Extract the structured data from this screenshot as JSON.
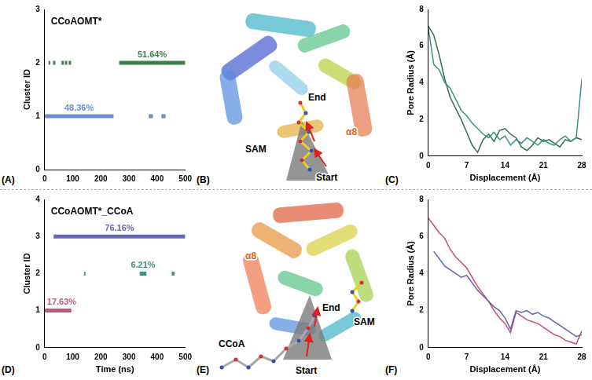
{
  "chart_data": [
    {
      "panel": "(A)",
      "type": "timeline",
      "annotation": "CCoAOMT*",
      "xlim": [
        0,
        500
      ],
      "xticks": [
        0,
        100,
        200,
        300,
        400,
        500
      ],
      "ylim": [
        0,
        3
      ],
      "yticks": [
        0,
        1,
        2,
        3
      ],
      "ylabel": "Cluster ID",
      "grid": false,
      "series": [
        {
          "cluster": 1,
          "color": "#6b8fca",
          "intervals": [
            [
              0,
              245
            ],
            [
              370,
              385
            ],
            [
              415,
              430
            ]
          ],
          "label": "48.36%"
        },
        {
          "cluster": 2,
          "color": "#3f7f4c",
          "intervals": [
            [
              14,
              20
            ],
            [
              30,
              38
            ],
            [
              60,
              68
            ],
            [
              72,
              80
            ],
            [
              86,
              94
            ],
            [
              265,
              500
            ]
          ],
          "label": "51.64%"
        }
      ]
    },
    {
      "panel": "(C)",
      "type": "line",
      "x": [
        0,
        1,
        2,
        3,
        4,
        5,
        6,
        7,
        8,
        9,
        10,
        11,
        12,
        13,
        14,
        15,
        16,
        17,
        18,
        19,
        20,
        21,
        22,
        23,
        24,
        25,
        26,
        27,
        28
      ],
      "xlim": [
        0,
        28
      ],
      "xticks": [
        0,
        7,
        14,
        21,
        28
      ],
      "ylim": [
        0,
        8
      ],
      "yticks": [
        0,
        2,
        4,
        6,
        8
      ],
      "xlabel": "Displacement (Å)",
      "ylabel": "Pore Radius (Å)",
      "grid": false,
      "series": [
        {
          "color": "#3a9089",
          "values": [
            7.0,
            5.0,
            4.7,
            4.0,
            3.7,
            3.1,
            2.5,
            2.2,
            1.8,
            1.5,
            1.2,
            1.0,
            1.3,
            0.9,
            1.1,
            0.6,
            0.9,
            0.7,
            1.0,
            0.8,
            0.6,
            0.9,
            0.7,
            0.6,
            0.9,
            1.1,
            0.8,
            1.0,
            4.2
          ]
        },
        {
          "color": "#2f6f50",
          "values": [
            7.1,
            6.6,
            5.5,
            4.2,
            3.2,
            2.6,
            2.0,
            1.3,
            0.6,
            0.2,
            0.9,
            1.2,
            0.8,
            1.4,
            1.5,
            1.2,
            1.0,
            0.5,
            0.3,
            0.6,
            1.0,
            0.8,
            0.9,
            0.7,
            0.5,
            0.9,
            0.8,
            1.0,
            0.9
          ]
        }
      ]
    },
    {
      "panel": "(D)",
      "type": "timeline",
      "annotation": "CCoAOMT*_CCoA",
      "xlim": [
        0,
        500
      ],
      "xticks": [
        0,
        100,
        200,
        300,
        400,
        500
      ],
      "xlabel": "Time (ns)",
      "ylim": [
        0,
        4
      ],
      "yticks": [
        0,
        1,
        2,
        3,
        4
      ],
      "ylabel": "Cluster ID",
      "grid": false,
      "series": [
        {
          "cluster": 1,
          "color": "#c0587e",
          "intervals": [
            [
              0,
              95
            ]
          ],
          "label": "17.63%"
        },
        {
          "cluster": 2,
          "color": "#3f8f7f",
          "intervals": [
            [
              140,
              145
            ],
            [
              338,
              362
            ],
            [
              452,
              462
            ]
          ],
          "label": "6.21%"
        },
        {
          "cluster": 3,
          "color": "#6a68b8",
          "intervals": [
            [
              32,
              500
            ]
          ],
          "label": "76.16%"
        }
      ]
    },
    {
      "panel": "(F)",
      "type": "line",
      "x": [
        0,
        1,
        2,
        3,
        4,
        5,
        6,
        7,
        8,
        9,
        10,
        11,
        12,
        13,
        14,
        15,
        16,
        17,
        18,
        19,
        20,
        21,
        22,
        23,
        24,
        25,
        26,
        27,
        28
      ],
      "xlim": [
        0,
        28
      ],
      "xticks": [
        0,
        7,
        14,
        21,
        28
      ],
      "ylim": [
        0,
        8
      ],
      "yticks": [
        0,
        2,
        4,
        6,
        8
      ],
      "xlabel": "Displacement (Å)",
      "ylabel": "Pore Radius (Å)",
      "grid": false,
      "series": [
        {
          "color": "#6464b4",
          "values": [
            null,
            5.2,
            4.8,
            4.4,
            4.2,
            4.0,
            3.8,
            3.9,
            3.5,
            3.1,
            2.8,
            2.5,
            2.2,
            2.0,
            1.6,
            1.0,
            2.0,
            1.9,
            2.0,
            1.8,
            1.9,
            1.7,
            1.6,
            1.4,
            1.2,
            1.0,
            0.8,
            0.6,
            0.7
          ]
        },
        {
          "color": "#c4506e",
          "values": [
            7.0,
            6.6,
            6.2,
            5.9,
            5.3,
            4.9,
            4.6,
            4.3,
            3.8,
            3.3,
            2.9,
            2.5,
            2.0,
            1.6,
            1.3,
            0.8,
            1.9,
            1.7,
            1.5,
            1.4,
            1.3,
            1.1,
            0.9,
            0.7,
            0.6,
            0.4,
            0.3,
            0.2,
            0.9
          ]
        }
      ]
    }
  ],
  "structures": [
    {
      "panel": "(B)",
      "start": "Start",
      "end": "End",
      "ligands": [
        "SAM"
      ],
      "helix": "α8"
    },
    {
      "panel": "(E)",
      "start": "Start",
      "end": "End",
      "ligands": [
        "CCoA",
        "SAM"
      ],
      "helix": "α8"
    }
  ]
}
